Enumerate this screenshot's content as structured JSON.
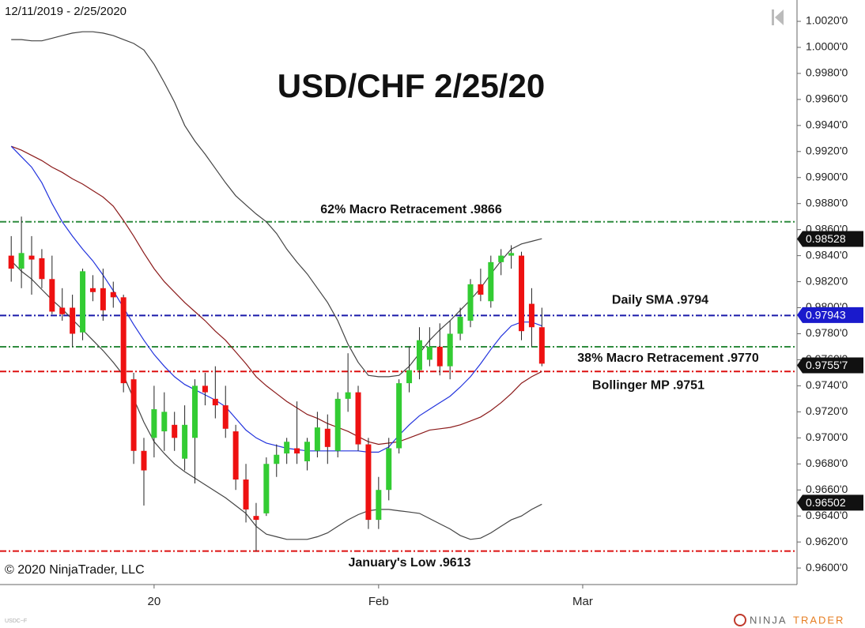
{
  "chart_data": {
    "type": "candlestick",
    "title": "USD/CHF 2/25/20",
    "date_range": "12/11/2019 - 2/25/2020",
    "copyright": "© 2020 NinjaTrader, LLC",
    "instrument": "USDC~F",
    "brand": [
      "NINJA",
      "TRADER"
    ],
    "up_color": "#33cc33",
    "down_color": "#ee1111",
    "wick_color": "#222222",
    "x": [
      0,
      1,
      2,
      3,
      4,
      5,
      6,
      7,
      8,
      9,
      10,
      11,
      12,
      13,
      14,
      15,
      16,
      17,
      18,
      19,
      20,
      21,
      22,
      23,
      24,
      25,
      26,
      27,
      28,
      29,
      30,
      31,
      32,
      33,
      34,
      35,
      36,
      37,
      38,
      39,
      40,
      41,
      42,
      43,
      44,
      45,
      46,
      47,
      48,
      49,
      50,
      51,
      52
    ],
    "open": [
      0.984,
      0.983,
      0.984,
      0.9838,
      0.9822,
      0.98,
      0.98,
      0.9781,
      0.9815,
      0.9815,
      0.9812,
      0.9808,
      0.9745,
      0.969,
      0.97,
      0.9705,
      0.971,
      0.9684,
      0.97,
      0.974,
      0.973,
      0.9725,
      0.9705,
      0.9668,
      0.964,
      0.9642,
      0.968,
      0.9688,
      0.9692,
      0.9682,
      0.969,
      0.9707,
      0.969,
      0.973,
      0.9735,
      0.9695,
      0.9637,
      0.966,
      0.9692,
      0.9742,
      0.9752,
      0.976,
      0.977,
      0.9755,
      0.978,
      0.979,
      0.9818,
      0.9805,
      0.9835,
      0.984,
      0.984,
      0.9803,
      0.9785
    ],
    "high": [
      0.9855,
      0.987,
      0.9855,
      0.9845,
      0.984,
      0.9815,
      0.981,
      0.983,
      0.9825,
      0.983,
      0.982,
      0.981,
      0.975,
      0.97,
      0.974,
      0.9735,
      0.972,
      0.9725,
      0.9745,
      0.975,
      0.9755,
      0.974,
      0.971,
      0.968,
      0.965,
      0.9685,
      0.9695,
      0.97,
      0.9728,
      0.97,
      0.972,
      0.9718,
      0.9735,
      0.9765,
      0.974,
      0.97,
      0.967,
      0.97,
      0.9745,
      0.977,
      0.9785,
      0.9785,
      0.9788,
      0.979,
      0.98,
      0.9822,
      0.983,
      0.984,
      0.9845,
      0.9848,
      0.9843,
      0.9815,
      0.98
    ],
    "low": [
      0.982,
      0.9815,
      0.981,
      0.9815,
      0.9795,
      0.979,
      0.977,
      0.9775,
      0.9805,
      0.979,
      0.98,
      0.9735,
      0.968,
      0.9648,
      0.9685,
      0.969,
      0.969,
      0.9675,
      0.9665,
      0.9725,
      0.9715,
      0.97,
      0.966,
      0.9635,
      0.9613,
      0.964,
      0.967,
      0.968,
      0.968,
      0.9675,
      0.9685,
      0.968,
      0.9685,
      0.972,
      0.969,
      0.963,
      0.963,
      0.9652,
      0.9688,
      0.9735,
      0.9745,
      0.9755,
      0.9748,
      0.9745,
      0.9775,
      0.9785,
      0.9805,
      0.98,
      0.9825,
      0.983,
      0.9775,
      0.977,
      0.9755
    ],
    "close": [
      0.983,
      0.9842,
      0.9837,
      0.9822,
      0.9797,
      0.9795,
      0.978,
      0.9828,
      0.9812,
      0.9798,
      0.9808,
      0.9742,
      0.969,
      0.9675,
      0.9722,
      0.972,
      0.97,
      0.971,
      0.974,
      0.9735,
      0.9725,
      0.9707,
      0.9668,
      0.9645,
      0.9637,
      0.968,
      0.9687,
      0.9697,
      0.9688,
      0.9697,
      0.9708,
      0.9693,
      0.973,
      0.9735,
      0.9695,
      0.9637,
      0.966,
      0.9692,
      0.9742,
      0.9752,
      0.9775,
      0.977,
      0.9755,
      0.978,
      0.9793,
      0.9818,
      0.981,
      0.9835,
      0.984,
      0.9842,
      0.9782,
      0.9785,
      0.9757
    ],
    "lines": [
      {
        "color": "#444444",
        "values": [
          1.0006,
          1.0006,
          1.0005,
          1.0005,
          1.0007,
          1.0009,
          1.0011,
          1.0012,
          1.0012,
          1.0011,
          1.0009,
          1.0006,
          1.0003,
          0.9998,
          0.9987,
          0.9973,
          0.9958,
          0.994,
          0.9928,
          0.9918,
          0.9907,
          0.9896,
          0.9886,
          0.9879,
          0.9872,
          0.9866,
          0.9857,
          0.9845,
          0.9835,
          0.9826,
          0.9815,
          0.9804,
          0.979,
          0.9772,
          0.9758,
          0.9748,
          0.9747,
          0.9747,
          0.9748,
          0.9755,
          0.9765,
          0.9775,
          0.9783,
          0.979,
          0.9798,
          0.9806,
          0.9815,
          0.9826,
          0.9836,
          0.9845,
          0.9849,
          0.9851,
          0.9853
        ]
      },
      {
        "color": "#444444",
        "values": [
          0.9836,
          0.9828,
          0.9822,
          0.9814,
          0.9806,
          0.9799,
          0.9791,
          0.9783,
          0.9775,
          0.9767,
          0.9758,
          0.9748,
          0.973,
          0.9712,
          0.9697,
          0.9688,
          0.968,
          0.9674,
          0.9669,
          0.9664,
          0.9659,
          0.9654,
          0.9648,
          0.9642,
          0.9632,
          0.9626,
          0.9624,
          0.9622,
          0.9622,
          0.9622,
          0.9624,
          0.9627,
          0.9632,
          0.9637,
          0.9641,
          0.9644,
          0.9645,
          0.9645,
          0.9644,
          0.9643,
          0.9642,
          0.9638,
          0.9634,
          0.963,
          0.9625,
          0.9622,
          0.9623,
          0.9627,
          0.9632,
          0.9637,
          0.964,
          0.9645,
          0.9649
        ]
      },
      {
        "color": "#8b1a1a",
        "values": [
          0.9924,
          0.9921,
          0.9917,
          0.9913,
          0.9908,
          0.9904,
          0.9899,
          0.9895,
          0.989,
          0.9885,
          0.9878,
          0.9867,
          0.9855,
          0.9842,
          0.983,
          0.982,
          0.9812,
          0.9804,
          0.9797,
          0.979,
          0.9782,
          0.9775,
          0.9766,
          0.9757,
          0.9747,
          0.974,
          0.9734,
          0.9728,
          0.9723,
          0.9718,
          0.9715,
          0.9711,
          0.9708,
          0.9705,
          0.9701,
          0.9697,
          0.9695,
          0.9696,
          0.9697,
          0.97,
          0.9703,
          0.9706,
          0.9707,
          0.9708,
          0.971,
          0.9713,
          0.9716,
          0.9721,
          0.9727,
          0.9734,
          0.9742,
          0.9747,
          0.9751
        ]
      },
      {
        "color": "#2233dd",
        "values": [
          0.9924,
          0.9916,
          0.9908,
          0.9896,
          0.988,
          0.9866,
          0.9855,
          0.9845,
          0.9836,
          0.9825,
          0.9813,
          0.98,
          0.9787,
          0.9775,
          0.9764,
          0.9755,
          0.9747,
          0.9741,
          0.9737,
          0.9733,
          0.9729,
          0.9724,
          0.9715,
          0.9706,
          0.97,
          0.9696,
          0.9694,
          0.9692,
          0.9691,
          0.969,
          0.969,
          0.969,
          0.969,
          0.969,
          0.969,
          0.9689,
          0.9689,
          0.9693,
          0.9702,
          0.971,
          0.9717,
          0.9722,
          0.9727,
          0.9732,
          0.9739,
          0.9747,
          0.9757,
          0.9768,
          0.9778,
          0.9786,
          0.9789,
          0.9789,
          0.9786
        ]
      }
    ],
    "levels": [
      {
        "label": "62% Macro Retracement .9866",
        "value": 0.9866,
        "color": "#2e8b3e"
      },
      {
        "label": "Daily SMA .9794",
        "value": 0.9794,
        "color": "#1a1aaa"
      },
      {
        "label": "38% Macro Retracement .9770",
        "value": 0.977,
        "color": "#2e8b3e"
      },
      {
        "label": "Bollinger MP .9751",
        "value": 0.9751,
        "color": "#dd1111"
      },
      {
        "label": "January's Low .9613",
        "value": 0.9613,
        "color": "#dd1111"
      }
    ],
    "markers": [
      {
        "label": "0.98528",
        "value": 0.98528,
        "color": "#111111"
      },
      {
        "label": "0.97943",
        "value": 0.97943,
        "color": "#1a1acc"
      },
      {
        "label": "0.9755'7",
        "value": 0.97557,
        "color": "#111111"
      },
      {
        "label": "0.96502",
        "value": 0.96502,
        "color": "#111111"
      }
    ],
    "xlim": [
      -1.1,
      77
    ],
    "xticks": [
      {
        "value": 14,
        "label": "20"
      },
      {
        "value": 36,
        "label": "Feb"
      },
      {
        "value": 56,
        "label": "Mar"
      }
    ],
    "ylim": [
      0.95873,
      1.00364
    ],
    "yticks": [
      {
        "value": 0.96,
        "label": "0.9600'0"
      },
      {
        "value": 0.962,
        "label": "0.9620'0"
      },
      {
        "value": 0.964,
        "label": "0.9640'0"
      },
      {
        "value": 0.966,
        "label": "0.9660'0"
      },
      {
        "value": 0.968,
        "label": "0.9680'0"
      },
      {
        "value": 0.97,
        "label": "0.9700'0"
      },
      {
        "value": 0.972,
        "label": "0.9720'0"
      },
      {
        "value": 0.974,
        "label": "0.9740'0"
      },
      {
        "value": 0.976,
        "label": "0.9760'0"
      },
      {
        "value": 0.978,
        "label": "0.9780'0"
      },
      {
        "value": 0.98,
        "label": "0.9800'0"
      },
      {
        "value": 0.982,
        "label": "0.9820'0"
      },
      {
        "value": 0.984,
        "label": "0.9840'0"
      },
      {
        "value": 0.986,
        "label": "0.9860'0"
      },
      {
        "value": 0.988,
        "label": "0.9880'0"
      },
      {
        "value": 0.99,
        "label": "0.9900'0"
      },
      {
        "value": 0.992,
        "label": "0.9920'0"
      },
      {
        "value": 0.994,
        "label": "0.9940'0"
      },
      {
        "value": 0.996,
        "label": "0.9960'0"
      },
      {
        "value": 0.998,
        "label": "0.9980'0"
      },
      {
        "value": 1.0,
        "label": "1.0000'0"
      },
      {
        "value": 1.002,
        "label": "1.0020'0"
      }
    ]
  }
}
